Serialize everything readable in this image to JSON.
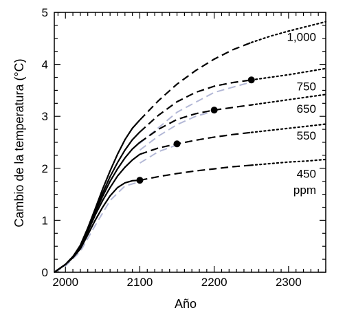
{
  "chart_data": {
    "type": "line",
    "xlabel": "Año",
    "ylabel": "Cambio de la temperatura (°C)",
    "xlim": [
      1985,
      2350
    ],
    "ylim": [
      0,
      5
    ],
    "x_ticks": [
      2000,
      2100,
      2200,
      2300
    ],
    "y_ticks": [
      0,
      1,
      2,
      3,
      4,
      5
    ],
    "grid": false,
    "colors": {
      "main": "#000000",
      "alt": "#b3b8d6"
    },
    "point_labels": [
      "1,000",
      "750",
      "650",
      "550",
      "450",
      "ppm"
    ],
    "series": [
      {
        "name": "450",
        "stabilization_marker": [
          2100,
          1.77
        ],
        "solid": {
          "x": [
            1985,
            2000,
            2010,
            2020,
            2030,
            2040,
            2050,
            2060,
            2070,
            2080,
            2090,
            2100
          ],
          "y": [
            0.0,
            0.15,
            0.28,
            0.45,
            0.72,
            1.0,
            1.25,
            1.47,
            1.63,
            1.72,
            1.76,
            1.77
          ]
        },
        "dashed": {
          "x": [
            2100,
            2125,
            2150,
            2175,
            2200,
            2225,
            2250
          ],
          "y": [
            1.77,
            1.84,
            1.9,
            1.95,
            1.99,
            2.03,
            2.06
          ]
        },
        "dotted": {
          "x": [
            2250,
            2275,
            2300,
            2325,
            2350
          ],
          "y": [
            2.06,
            2.09,
            2.12,
            2.14,
            2.17
          ]
        },
        "alt": {
          "x": [
            1985,
            2000,
            2020,
            2040,
            2060,
            2080,
            2100
          ],
          "y": [
            0.0,
            0.12,
            0.4,
            0.9,
            1.38,
            1.66,
            1.74
          ]
        }
      },
      {
        "name": "550",
        "stabilization_marker": [
          2150,
          2.47
        ],
        "solid": {
          "x": [
            1985,
            2000,
            2010,
            2020,
            2030,
            2040,
            2050,
            2060,
            2070,
            2080,
            2090,
            2100
          ],
          "y": [
            0.0,
            0.15,
            0.3,
            0.48,
            0.78,
            1.1,
            1.38,
            1.63,
            1.85,
            2.02,
            2.16,
            2.27
          ]
        },
        "dashed": {
          "x": [
            2100,
            2125,
            2150,
            2175,
            2200,
            2225,
            2250
          ],
          "y": [
            2.27,
            2.39,
            2.47,
            2.54,
            2.6,
            2.65,
            2.69
          ]
        },
        "dotted": {
          "x": [
            2250,
            2275,
            2300,
            2325,
            2350
          ],
          "y": [
            2.69,
            2.73,
            2.77,
            2.81,
            2.85
          ]
        },
        "alt": {
          "x": [
            2100,
            2125,
            2150
          ],
          "y": [
            2.1,
            2.32,
            2.45
          ]
        }
      },
      {
        "name": "650",
        "stabilization_marker": [
          2200,
          3.12
        ],
        "solid": {
          "x": [
            1985,
            2000,
            2010,
            2020,
            2030,
            2040,
            2050,
            2060,
            2070,
            2080,
            2090,
            2100
          ],
          "y": [
            0.0,
            0.15,
            0.3,
            0.5,
            0.8,
            1.15,
            1.46,
            1.75,
            1.99,
            2.2,
            2.37,
            2.5
          ]
        },
        "dashed": {
          "x": [
            2100,
            2125,
            2150,
            2175,
            2200,
            2225,
            2250
          ],
          "y": [
            2.5,
            2.75,
            2.94,
            3.05,
            3.12,
            3.17,
            3.22
          ]
        },
        "dotted": {
          "x": [
            2250,
            2275,
            2300,
            2325,
            2350
          ],
          "y": [
            3.22,
            3.27,
            3.32,
            3.37,
            3.42
          ]
        },
        "alt": {
          "x": [
            2100,
            2125,
            2150,
            2175,
            2200
          ],
          "y": [
            2.35,
            2.62,
            2.84,
            3.0,
            3.1
          ]
        }
      },
      {
        "name": "750",
        "stabilization_marker": [
          2250,
          3.7
        ],
        "solid": {
          "x": [
            1985,
            2000,
            2010,
            2020,
            2030,
            2040,
            2050,
            2060,
            2070,
            2080,
            2090,
            2100
          ],
          "y": [
            0.0,
            0.15,
            0.3,
            0.5,
            0.82,
            1.18,
            1.52,
            1.84,
            2.11,
            2.35,
            2.55,
            2.7
          ]
        },
        "dashed": {
          "x": [
            2100,
            2125,
            2150,
            2175,
            2200,
            2225,
            2250
          ],
          "y": [
            2.7,
            3.02,
            3.28,
            3.46,
            3.58,
            3.65,
            3.7
          ]
        },
        "dotted": {
          "x": [
            2250,
            2275,
            2300,
            2325,
            2350
          ],
          "y": [
            3.7,
            3.75,
            3.8,
            3.86,
            3.92
          ]
        },
        "alt": {
          "x": [
            2100,
            2150,
            2200,
            2250
          ],
          "y": [
            2.48,
            3.08,
            3.46,
            3.66
          ]
        }
      },
      {
        "name": "1,000",
        "solid": {
          "x": [
            1985,
            2000,
            2010,
            2020,
            2030,
            2040,
            2050,
            2060,
            2070,
            2080,
            2090,
            2100
          ],
          "y": [
            0.0,
            0.15,
            0.3,
            0.52,
            0.85,
            1.22,
            1.6,
            1.95,
            2.27,
            2.55,
            2.77,
            2.93
          ]
        },
        "dashed": {
          "x": [
            2100,
            2125,
            2150,
            2175,
            2200,
            2225,
            2250
          ],
          "y": [
            2.93,
            3.3,
            3.62,
            3.88,
            4.1,
            4.28,
            4.42
          ]
        },
        "dotted": {
          "x": [
            2250,
            2275,
            2300,
            2325,
            2350
          ],
          "y": [
            4.42,
            4.54,
            4.64,
            4.73,
            4.82
          ]
        }
      }
    ]
  }
}
